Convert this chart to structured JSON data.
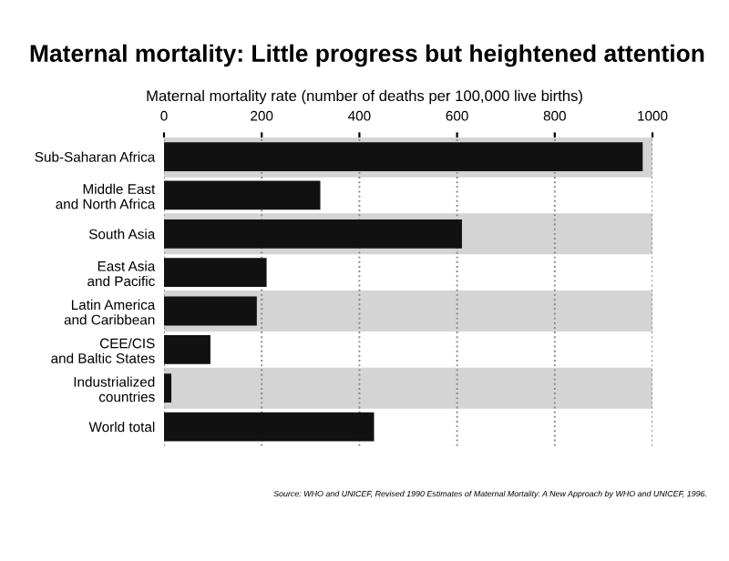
{
  "chart_data": {
    "type": "bar",
    "orientation": "horizontal",
    "title": "Maternal mortality: Little progress but heightened attention",
    "subtitle": "Maternal mortality rate (number of deaths per 100,000 live births)",
    "categories": [
      "Sub-Saharan Africa",
      "Middle East\nand North Africa",
      "South Asia",
      "East Asia\nand Pacific",
      "Latin America\nand Caribbean",
      "CEE/CIS\nand Baltic States",
      "Industrialized\ncountries",
      "World total"
    ],
    "values": [
      980,
      320,
      610,
      210,
      190,
      95,
      15,
      430
    ],
    "color": "#111111",
    "xlim": [
      0,
      1000
    ],
    "xticks": [
      0,
      200,
      400,
      600,
      800,
      1000
    ],
    "grid": "x",
    "annotations": [
      "Source: WHO and UNICEF, Revised 1990 Estimates of Maternal Mortality: A New Approach by WHO and UNICEF, 1996."
    ]
  }
}
